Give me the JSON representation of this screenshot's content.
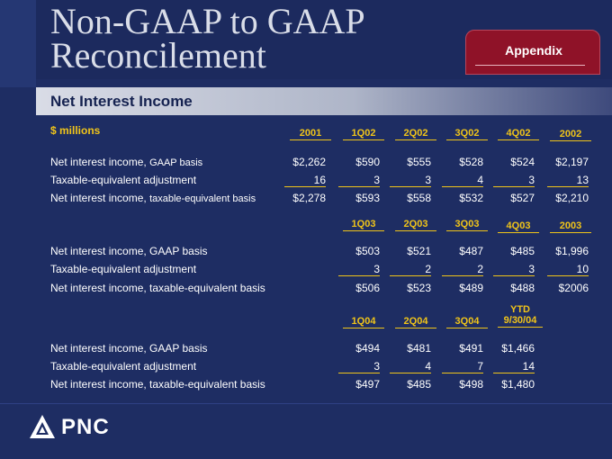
{
  "title": {
    "line1": "Non-GAAP to GAAP",
    "line2": "Reconcilement"
  },
  "tab": {
    "label": "Appendix"
  },
  "section": {
    "title": "Net Interest Income"
  },
  "units": "$ millions",
  "table1": {
    "headers": [
      "2001",
      "1Q02",
      "2Q02",
      "3Q02",
      "4Q02",
      "2002"
    ],
    "rows": [
      {
        "label": "Net interest income,",
        "label_small": "GAAP basis",
        "values": [
          "$2,262",
          "$590",
          "$555",
          "$528",
          "$524",
          "$2,197"
        ]
      },
      {
        "label": "Taxable-equivalent adjustment",
        "label_small": "",
        "values": [
          "16",
          "3",
          "3",
          "4",
          "3",
          "13"
        ]
      },
      {
        "label": "Net interest income,",
        "label_small": "taxable-equivalent basis",
        "values": [
          "$2,278",
          "$593",
          "$558",
          "$532",
          "$527",
          "$2,210"
        ]
      }
    ]
  },
  "table2": {
    "headers": [
      "1Q03",
      "2Q03",
      "3Q03",
      "4Q03",
      "2003"
    ],
    "rows": [
      {
        "label": "Net interest income, GAAP basis",
        "values": [
          "$503",
          "$521",
          "$487",
          "$485",
          "$1,996"
        ]
      },
      {
        "label": "Taxable-equivalent adjustment",
        "values": [
          "3",
          "2",
          "2",
          "3",
          "10"
        ]
      },
      {
        "label": "Net interest income, taxable-equivalent basis",
        "values": [
          "$506",
          "$523",
          "$489",
          "$488",
          "$2006"
        ]
      }
    ]
  },
  "table3": {
    "headers": [
      "1Q04",
      "2Q04",
      "3Q04"
    ],
    "ytd_header": {
      "line1": "YTD",
      "line2": "9/30/04"
    },
    "rows": [
      {
        "label": "Net interest income, GAAP basis",
        "values": [
          "$494",
          "$481",
          "$491",
          "$1,466"
        ]
      },
      {
        "label": "Taxable-equivalent adjustment",
        "values": [
          "3",
          "4",
          "7",
          "14"
        ]
      },
      {
        "label": "Net interest income, taxable-equivalent basis",
        "values": [
          "$497",
          "$485",
          "$498",
          "$1,480"
        ]
      }
    ]
  },
  "logo": {
    "text": "PNC"
  },
  "colors": {
    "background": "#1e2d63",
    "accent": "#f0c419",
    "tab": "#8f1228"
  }
}
